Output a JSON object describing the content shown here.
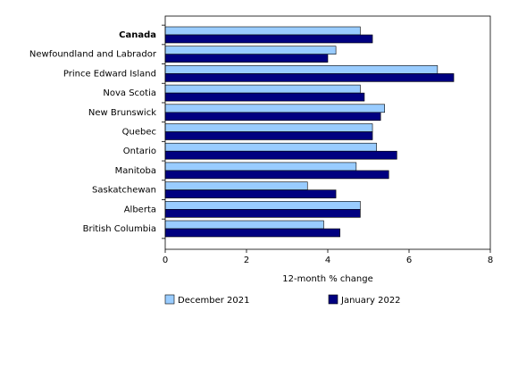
{
  "chart_data": {
    "type": "hbar",
    "x_label": "12-month % change",
    "categories": [
      "Canada",
      "Newfoundland and Labrador",
      "Prince Edward Island",
      "Nova Scotia",
      "New Brunswick",
      "Quebec",
      "Ontario",
      "Manitoba",
      "Saskatchewan",
      "Alberta",
      "British Columbia"
    ],
    "series": [
      {
        "name": "December 2021",
        "color": "#99ccff",
        "values": [
          4.8,
          4.2,
          6.7,
          4.8,
          5.4,
          5.1,
          5.2,
          4.7,
          3.5,
          4.8,
          3.9
        ]
      },
      {
        "name": "January 2022",
        "color": "#000080",
        "values": [
          5.1,
          4.0,
          7.1,
          4.9,
          5.3,
          5.1,
          5.7,
          5.5,
          4.2,
          4.8,
          4.3
        ]
      }
    ],
    "xlim": [
      0,
      8
    ],
    "xticks": [
      0,
      2,
      4,
      6,
      8
    ],
    "grid": false,
    "legend": "bottom"
  }
}
